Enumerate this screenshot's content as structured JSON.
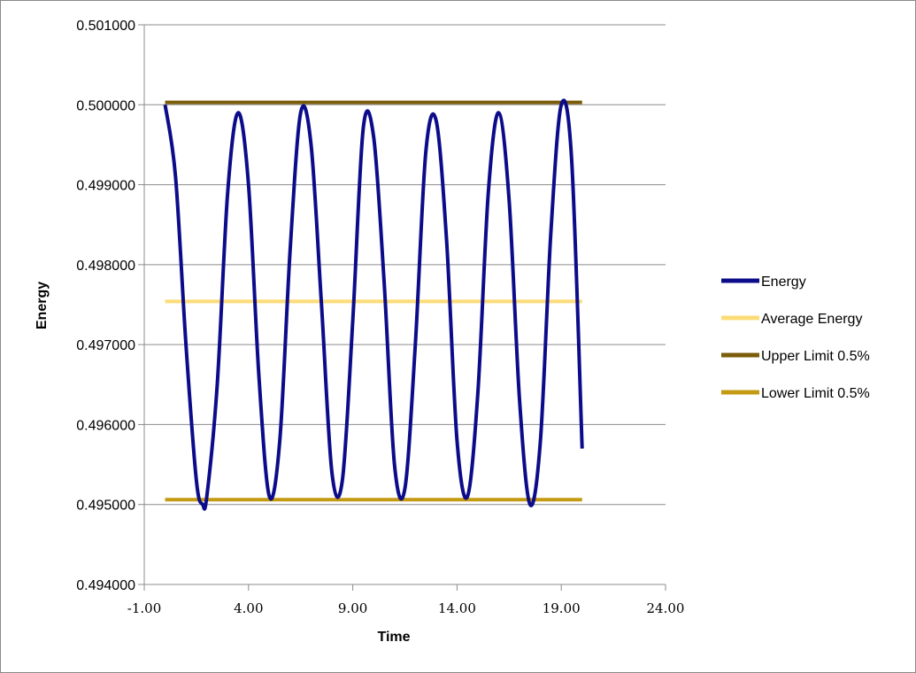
{
  "chart_data": {
    "type": "line",
    "title": "",
    "xlabel": "Time",
    "ylabel": "Energy",
    "xlim": [
      -1,
      24
    ],
    "ylim": [
      0.494,
      0.501
    ],
    "xticks": [
      "-1.00",
      "4.00",
      "9.00",
      "14.00",
      "19.00",
      "24.00"
    ],
    "yticks": [
      "0.494000",
      "0.495000",
      "0.496000",
      "0.497000",
      "0.498000",
      "0.499000",
      "0.500000",
      "0.501000"
    ],
    "grid": "horizontal",
    "legend_position": "right",
    "series": [
      {
        "name": "Energy",
        "color": "#0c0c8a",
        "x_range": [
          0,
          20
        ],
        "x": [
          0,
          0.5,
          1.0,
          1.5,
          1.8,
          2.0,
          2.5,
          3.0,
          3.5,
          4.0,
          4.5,
          5.0,
          5.5,
          6.0,
          6.5,
          7.0,
          7.5,
          8.0,
          8.5,
          9.0,
          9.5,
          10.0,
          10.5,
          11.0,
          11.5,
          12.0,
          12.5,
          13.0,
          13.5,
          14.0,
          14.5,
          15.0,
          15.5,
          16.0,
          16.5,
          17.0,
          17.5,
          18.0,
          18.5,
          19.0,
          19.5,
          20.0
        ],
        "values": [
          0.5,
          0.4991,
          0.497,
          0.4953,
          0.495,
          0.4951,
          0.4965,
          0.4989,
          0.4999,
          0.499,
          0.4966,
          0.4951,
          0.4958,
          0.4982,
          0.4999,
          0.4995,
          0.4975,
          0.4954,
          0.4953,
          0.4973,
          0.4997,
          0.4996,
          0.4978,
          0.4955,
          0.4952,
          0.497,
          0.4994,
          0.4998,
          0.4983,
          0.4958,
          0.4951,
          0.4964,
          0.4989,
          0.4999,
          0.4988,
          0.4963,
          0.495,
          0.4958,
          0.4984,
          0.5,
          0.4993,
          0.4957
        ]
      },
      {
        "name": "Average Energy",
        "color": "#fcdc78",
        "x": [
          0,
          20
        ],
        "values": [
          0.49754,
          0.49754
        ]
      },
      {
        "name": "Upper Limit 0.5%",
        "color": "#7a5c0a",
        "x": [
          0,
          20
        ],
        "values": [
          0.50003,
          0.50003
        ]
      },
      {
        "name": "Lower Limit 0.5%",
        "color": "#c49a12",
        "x": [
          0,
          20
        ],
        "values": [
          0.49506,
          0.49506
        ]
      }
    ]
  }
}
